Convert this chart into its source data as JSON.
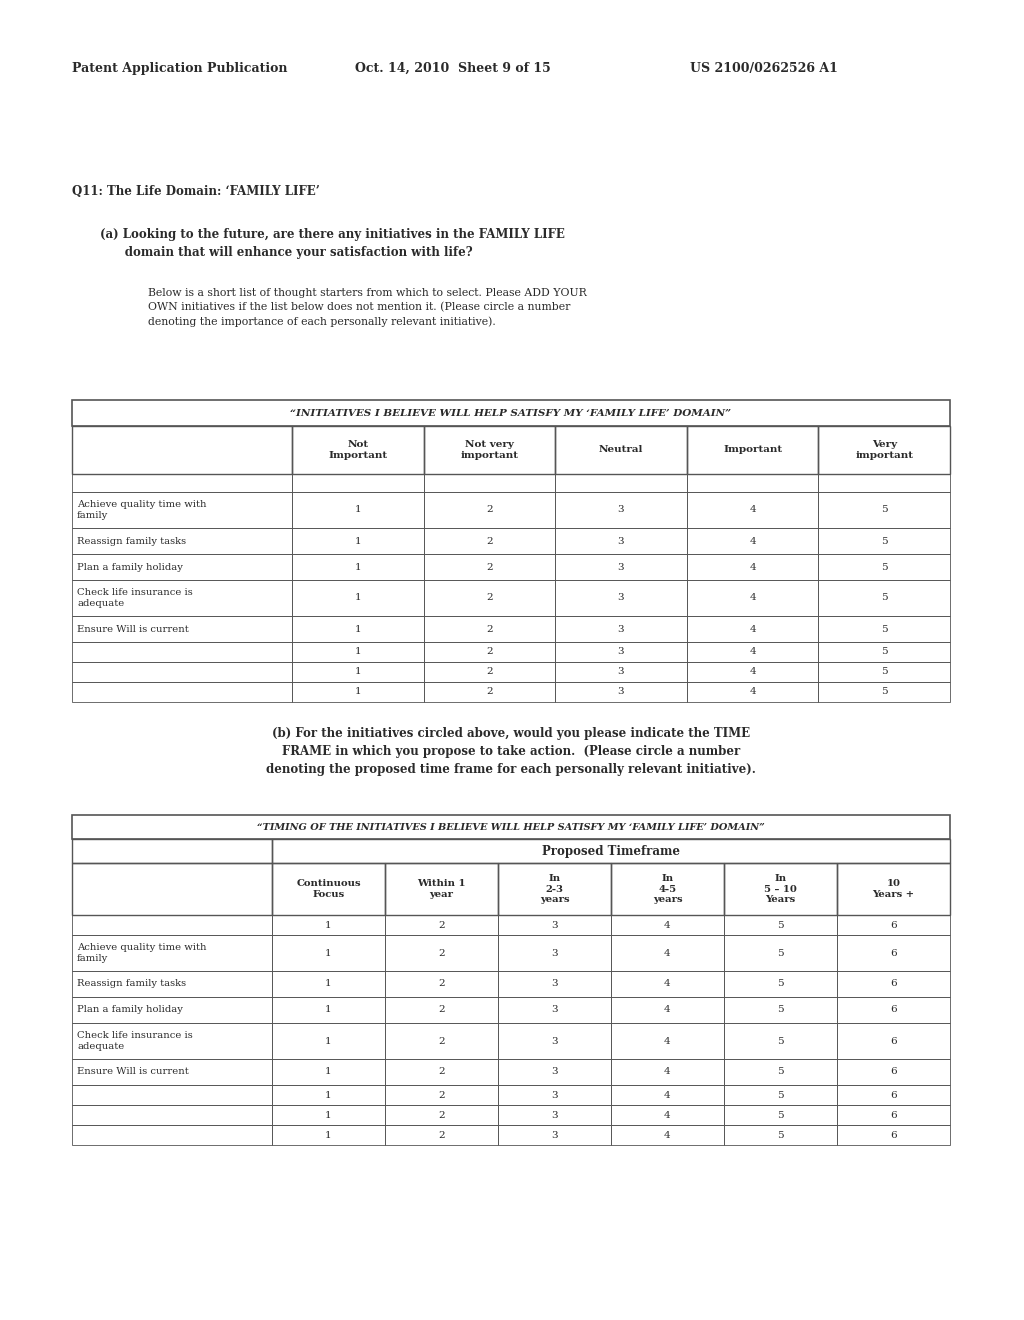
{
  "header_left": "Patent Application Publication",
  "header_mid": "Oct. 14, 2010  Sheet 9 of 15",
  "header_right": "US 2100/0262526 A1",
  "q11_label": "Q11: The Life Domain: ‘FAMILY LIFE’",
  "qa_label_bold": "(a) Looking to the future, are there any initiatives in the FAMILY LIFE\n      domain that will enhance your satisfaction with life?",
  "qa_body1": "Below is a short list of thought starters from which to select. Please ",
  "qa_body2": "ADD YOUR",
  "qa_body3": "\nOWN",
  "qa_body4": " initiatives if the list below does not mention it. (Please circle a number\ndenoting the importance of each personally relevant initiative).",
  "table1_title": "“INITIATIVES I BELIEVE WILL HELP SATISFY MY ‘FAMILY LIFE’ DOMAIN”",
  "table1_col_headers": [
    "Not\nImportant",
    "Not very\nimportant",
    "Neutral",
    "Important",
    "Very\nimportant"
  ],
  "table1_rows": [
    [
      "Achieve quality time with\nfamily",
      "1",
      "2",
      "3",
      "4",
      "5"
    ],
    [
      "Reassign family tasks",
      "1",
      "2",
      "3",
      "4",
      "5"
    ],
    [
      "Plan a family holiday",
      "1",
      "2",
      "3",
      "4",
      "5"
    ],
    [
      "Check life insurance is\nadequate",
      "1",
      "2",
      "3",
      "4",
      "5"
    ],
    [
      "Ensure Will is current",
      "1",
      "2",
      "3",
      "4",
      "5"
    ],
    [
      "",
      "1",
      "2",
      "3",
      "4",
      "5"
    ],
    [
      "",
      "1",
      "2",
      "3",
      "4",
      "5"
    ],
    [
      "",
      "1",
      "2",
      "3",
      "4",
      "5"
    ]
  ],
  "qb_label": "(b) For the initiatives circled above, would you please indicate the TIME\nFRAME in which you propose to take action.  (Please circle a number\ndenoting the proposed time frame for each personally relevant initiative).",
  "table2_title": "“TIMING OF THE INITIATIVES I BELIEVE WILL HELP SATISFY MY ‘FAMILY LIFE’ DOMAIN”",
  "table2_proposed": "Proposed Timeframe",
  "table2_col_headers": [
    "Continuous\nFocus",
    "Within 1\nyear",
    "In\n2-3\nyears",
    "In\n4-5\nyears",
    "In\n5 – 10\nYears",
    "10\nYears +"
  ],
  "table2_col_nums": [
    "1",
    "2",
    "3",
    "4",
    "5",
    "6"
  ],
  "table2_rows": [
    [
      "Achieve quality time with\nfamily",
      "1",
      "2",
      "3",
      "4",
      "5",
      "6"
    ],
    [
      "Reassign family tasks",
      "1",
      "2",
      "3",
      "4",
      "5",
      "6"
    ],
    [
      "Plan a family holiday",
      "1",
      "2",
      "3",
      "4",
      "5",
      "6"
    ],
    [
      "Check life insurance is\nadequate",
      "1",
      "2",
      "3",
      "4",
      "5",
      "6"
    ],
    [
      "Ensure Will is current",
      "1",
      "2",
      "3",
      "4",
      "5",
      "6"
    ],
    [
      "",
      "1",
      "2",
      "3",
      "4",
      "5",
      "6"
    ],
    [
      "",
      "1",
      "2",
      "3",
      "4",
      "5",
      "6"
    ],
    [
      "",
      "1",
      "2",
      "3",
      "4",
      "5",
      "6"
    ]
  ],
  "bg_color": "#ffffff",
  "text_color": "#2a2a2a",
  "table_border_color": "#555555"
}
